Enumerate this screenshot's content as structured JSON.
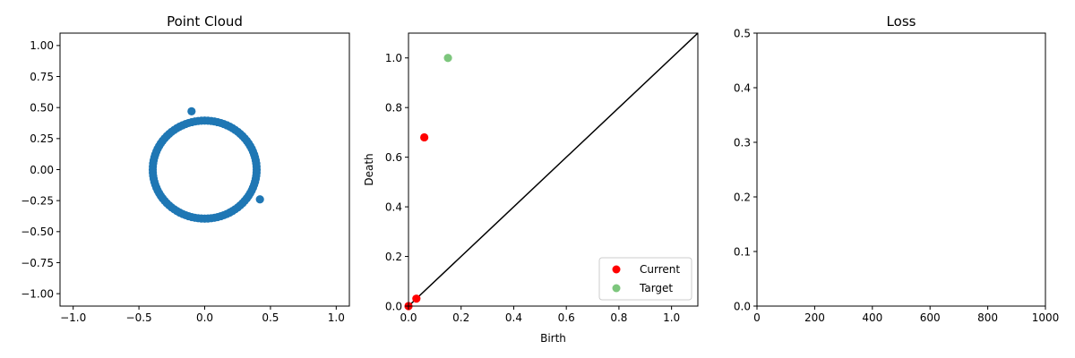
{
  "colors": {
    "scatter": "#1f77b4",
    "current": "#ff0000",
    "target": "#5cb85c",
    "diagonal": "#000000"
  },
  "chart_data": [
    {
      "type": "scatter",
      "title": "Point Cloud",
      "xlabel": "",
      "ylabel": "",
      "xlim": [
        -1.1,
        1.1
      ],
      "ylim": [
        -1.1,
        1.1
      ],
      "xticks": [
        -1.0,
        -0.5,
        0.0,
        0.5,
        1.0
      ],
      "xtick_labels": [
        "−1.0",
        "−0.5",
        "0.0",
        "0.5",
        "1.0"
      ],
      "yticks": [
        -1.0,
        -0.75,
        -0.5,
        -0.25,
        0.0,
        0.25,
        0.5,
        0.75,
        1.0
      ],
      "ytick_labels": [
        "−1.00",
        "−0.75",
        "−0.50",
        "−0.25",
        "0.00",
        "0.25",
        "0.50",
        "0.75",
        "1.00"
      ],
      "circle": {
        "center": [
          0.0,
          0.0
        ],
        "radius": 0.395,
        "n_points": 100
      },
      "outliers": [
        [
          -0.1,
          0.47
        ],
        [
          0.42,
          -0.24
        ]
      ],
      "grid": false
    },
    {
      "type": "scatter",
      "title": "",
      "xlabel": "Birth",
      "ylabel": "Death",
      "xlim": [
        0.0,
        1.1
      ],
      "ylim": [
        0.0,
        1.1
      ],
      "xticks": [
        0.0,
        0.2,
        0.4,
        0.6,
        0.8,
        1.0
      ],
      "xtick_labels": [
        "0.0",
        "0.2",
        "0.4",
        "0.6",
        "0.8",
        "1.0"
      ],
      "yticks": [
        0.0,
        0.2,
        0.4,
        0.6,
        0.8,
        1.0
      ],
      "ytick_labels": [
        "0.0",
        "0.2",
        "0.4",
        "0.6",
        "0.8",
        "1.0"
      ],
      "diagonal": true,
      "series": [
        {
          "name": "Current",
          "points": [
            [
              0.0,
              0.0
            ],
            [
              0.03,
              0.03
            ],
            [
              0.06,
              0.68
            ]
          ]
        },
        {
          "name": "Target",
          "points": [
            [
              0.15,
              1.0
            ]
          ]
        }
      ],
      "legend": "lower-right",
      "grid": false
    },
    {
      "type": "line",
      "title": "Loss",
      "xlabel": "",
      "ylabel": "",
      "xlim": [
        0,
        1000
      ],
      "ylim": [
        0.0,
        0.5
      ],
      "xticks": [
        0,
        200,
        400,
        600,
        800,
        1000
      ],
      "xtick_labels": [
        "0",
        "200",
        "400",
        "600",
        "800",
        "1000"
      ],
      "yticks": [
        0.0,
        0.1,
        0.2,
        0.3,
        0.4,
        0.5
      ],
      "ytick_labels": [
        "0.0",
        "0.1",
        "0.2",
        "0.3",
        "0.4",
        "0.5"
      ],
      "series": [],
      "grid": false
    }
  ]
}
